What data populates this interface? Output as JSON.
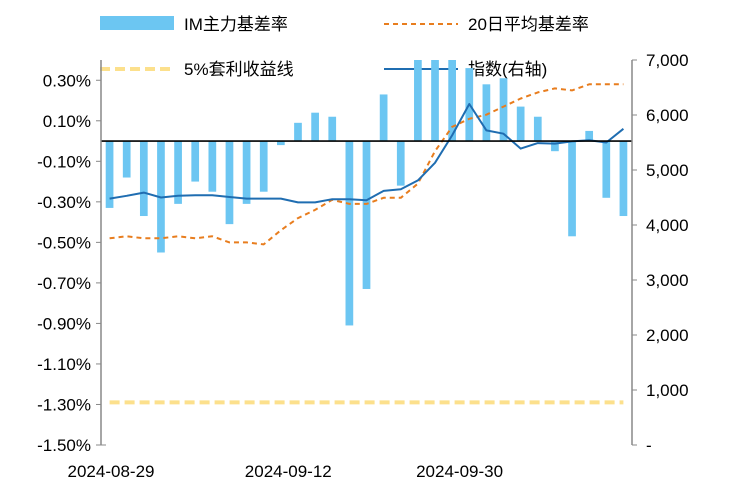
{
  "chart_data": {
    "type": "bar",
    "legend": [
      {
        "label": "IM主力基差率",
        "kind": "bar",
        "color": "#6CC6F2"
      },
      {
        "label": "20日平均基差率",
        "kind": "dashed-line",
        "color": "#E87D1E"
      },
      {
        "label": "5%套利收益线",
        "kind": "dashed-line",
        "color": "#FCE08C"
      },
      {
        "label": "指数(右轴)",
        "kind": "line",
        "color": "#1F6DB1"
      }
    ],
    "left_axis": {
      "min": -1.5,
      "max": 0.4,
      "ticks": [
        0.3,
        0.1,
        -0.1,
        -0.3,
        -0.5,
        -0.7,
        -0.9,
        -1.1,
        -1.3,
        -1.5
      ],
      "tick_labels": [
        "0.30%",
        "0.10%",
        "-0.10%",
        "-0.30%",
        "-0.50%",
        "-0.70%",
        "-0.90%",
        "-1.10%",
        "-1.30%",
        "-1.50%"
      ]
    },
    "right_axis": {
      "min": 0,
      "max": 7000,
      "ticks": [
        7000,
        6000,
        5000,
        4000,
        3000,
        2000,
        1000,
        0
      ],
      "tick_labels": [
        "7,000",
        "6,000",
        "5,000",
        "4,000",
        "3,000",
        "2,000",
        "1,000",
        "-"
      ]
    },
    "x_labels": [
      {
        "index": 0,
        "label": "2024-08-29"
      },
      {
        "index": 10,
        "label": "2024-09-12"
      },
      {
        "index": 20,
        "label": "2024-09-30"
      }
    ],
    "n_points": 31,
    "series": [
      {
        "name": "IM主力基差率",
        "axis": "left",
        "values": [
          -0.33,
          -0.18,
          -0.37,
          -0.55,
          -0.31,
          -0.2,
          -0.25,
          -0.41,
          -0.31,
          -0.25,
          -0.02,
          0.09,
          0.14,
          0.12,
          -0.91,
          -0.73,
          0.23,
          -0.22,
          0.4,
          0.4,
          0.4,
          0.36,
          0.28,
          0.31,
          0.17,
          0.12,
          -0.05,
          -0.47,
          0.05,
          -0.28,
          -0.37
        ]
      },
      {
        "name": "20日平均基差率",
        "axis": "left",
        "values": [
          -0.48,
          -0.47,
          -0.48,
          -0.48,
          -0.47,
          -0.48,
          -0.47,
          -0.5,
          -0.5,
          -0.51,
          -0.44,
          -0.38,
          -0.34,
          -0.29,
          -0.31,
          -0.31,
          -0.28,
          -0.28,
          -0.21,
          -0.05,
          0.07,
          0.11,
          0.13,
          0.17,
          0.21,
          0.24,
          0.26,
          0.25,
          0.28,
          0.28,
          0.28
        ]
      },
      {
        "name": "5%套利收益线",
        "axis": "left",
        "values": [
          -1.29,
          -1.29,
          -1.29,
          -1.29,
          -1.29,
          -1.29,
          -1.29,
          -1.29,
          -1.29,
          -1.29,
          -1.29,
          -1.29,
          -1.29,
          -1.29,
          -1.29,
          -1.29,
          -1.29,
          -1.29,
          -1.29,
          -1.29,
          -1.29,
          -1.29,
          -1.29,
          -1.29,
          -1.29,
          -1.29,
          -1.29,
          -1.29,
          -1.29,
          -1.29,
          -1.29
        ]
      },
      {
        "name": "指数(右轴)",
        "axis": "right",
        "values": [
          4480,
          4530,
          4590,
          4500,
          4530,
          4540,
          4540,
          4510,
          4480,
          4480,
          4480,
          4410,
          4410,
          4470,
          4470,
          4450,
          4620,
          4650,
          4810,
          5130,
          5630,
          6200,
          5720,
          5660,
          5390,
          5490,
          5480,
          5520,
          5540,
          5500,
          5750
        ]
      }
    ]
  }
}
